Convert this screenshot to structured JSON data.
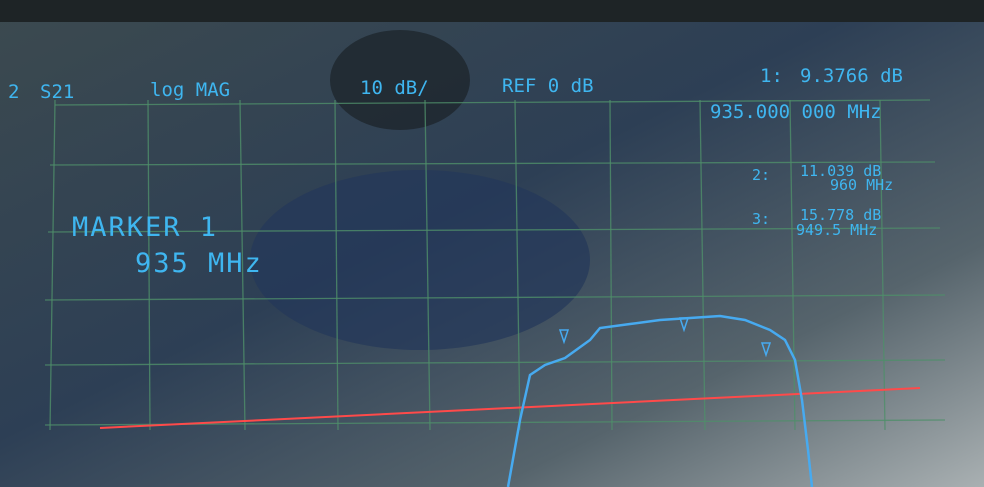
{
  "header": {
    "channel": "2",
    "parameter": "S21",
    "format": "log MAG",
    "scale": "10 dB/",
    "reference": "REF 0 dB"
  },
  "markers": [
    {
      "label": "1:",
      "value": "9.3766 dB",
      "frequency": "935.000 000 MHz"
    },
    {
      "label": "2:",
      "value": "11.039 dB",
      "frequency": "960 MHz"
    },
    {
      "label": "3:",
      "value": "15.778 dB",
      "frequency": "949.5 MHz"
    }
  ],
  "active_marker": {
    "title": "MARKER 1",
    "frequency": "935 MHz"
  }
}
